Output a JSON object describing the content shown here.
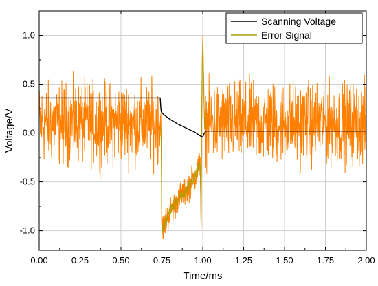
{
  "chart_data": {
    "type": "line",
    "title": "",
    "xlabel": "Time/ms",
    "ylabel": "Voltage/V",
    "xlim": [
      0,
      2.0
    ],
    "ylim": [
      -1.2,
      1.25
    ],
    "grid": true,
    "legend_position": "top-right",
    "x_ticks": [
      "0.00",
      "0.25",
      "0.50",
      "0.75",
      "1.00",
      "1.25",
      "1.50",
      "1.75",
      "2.00"
    ],
    "y_ticks": [
      "-1.0",
      "-0.5",
      "0.0",
      "0.5",
      "1.0"
    ],
    "series": [
      {
        "name": "Scanning Voltage",
        "color": "#000000",
        "x": [
          0.0,
          0.74,
          0.745,
          0.76,
          0.8,
          0.85,
          0.9,
          0.95,
          0.985,
          1.0,
          1.01,
          1.02,
          2.0
        ],
        "y": [
          0.36,
          0.36,
          0.22,
          0.19,
          0.14,
          0.09,
          0.05,
          0.01,
          -0.03,
          -0.04,
          0.0,
          0.02,
          0.02
        ]
      },
      {
        "name": "Error Signal",
        "color": "#a8a000",
        "noise_color": "#ff8000",
        "x": [
          0.0,
          0.7,
          0.745,
          0.75,
          0.8,
          0.85,
          0.9,
          0.95,
          0.985,
          0.99,
          0.995,
          1.0,
          1.005,
          1.01,
          1.02,
          1.04,
          2.0
        ],
        "y": [
          0.1,
          0.1,
          0.1,
          -1.0,
          -0.8,
          -0.67,
          -0.58,
          -0.45,
          -0.3,
          -1.0,
          0.5,
          1.0,
          0.6,
          0.1,
          0.08,
          0.1,
          0.1
        ],
        "noise_amplitude": 0.16
      }
    ]
  }
}
